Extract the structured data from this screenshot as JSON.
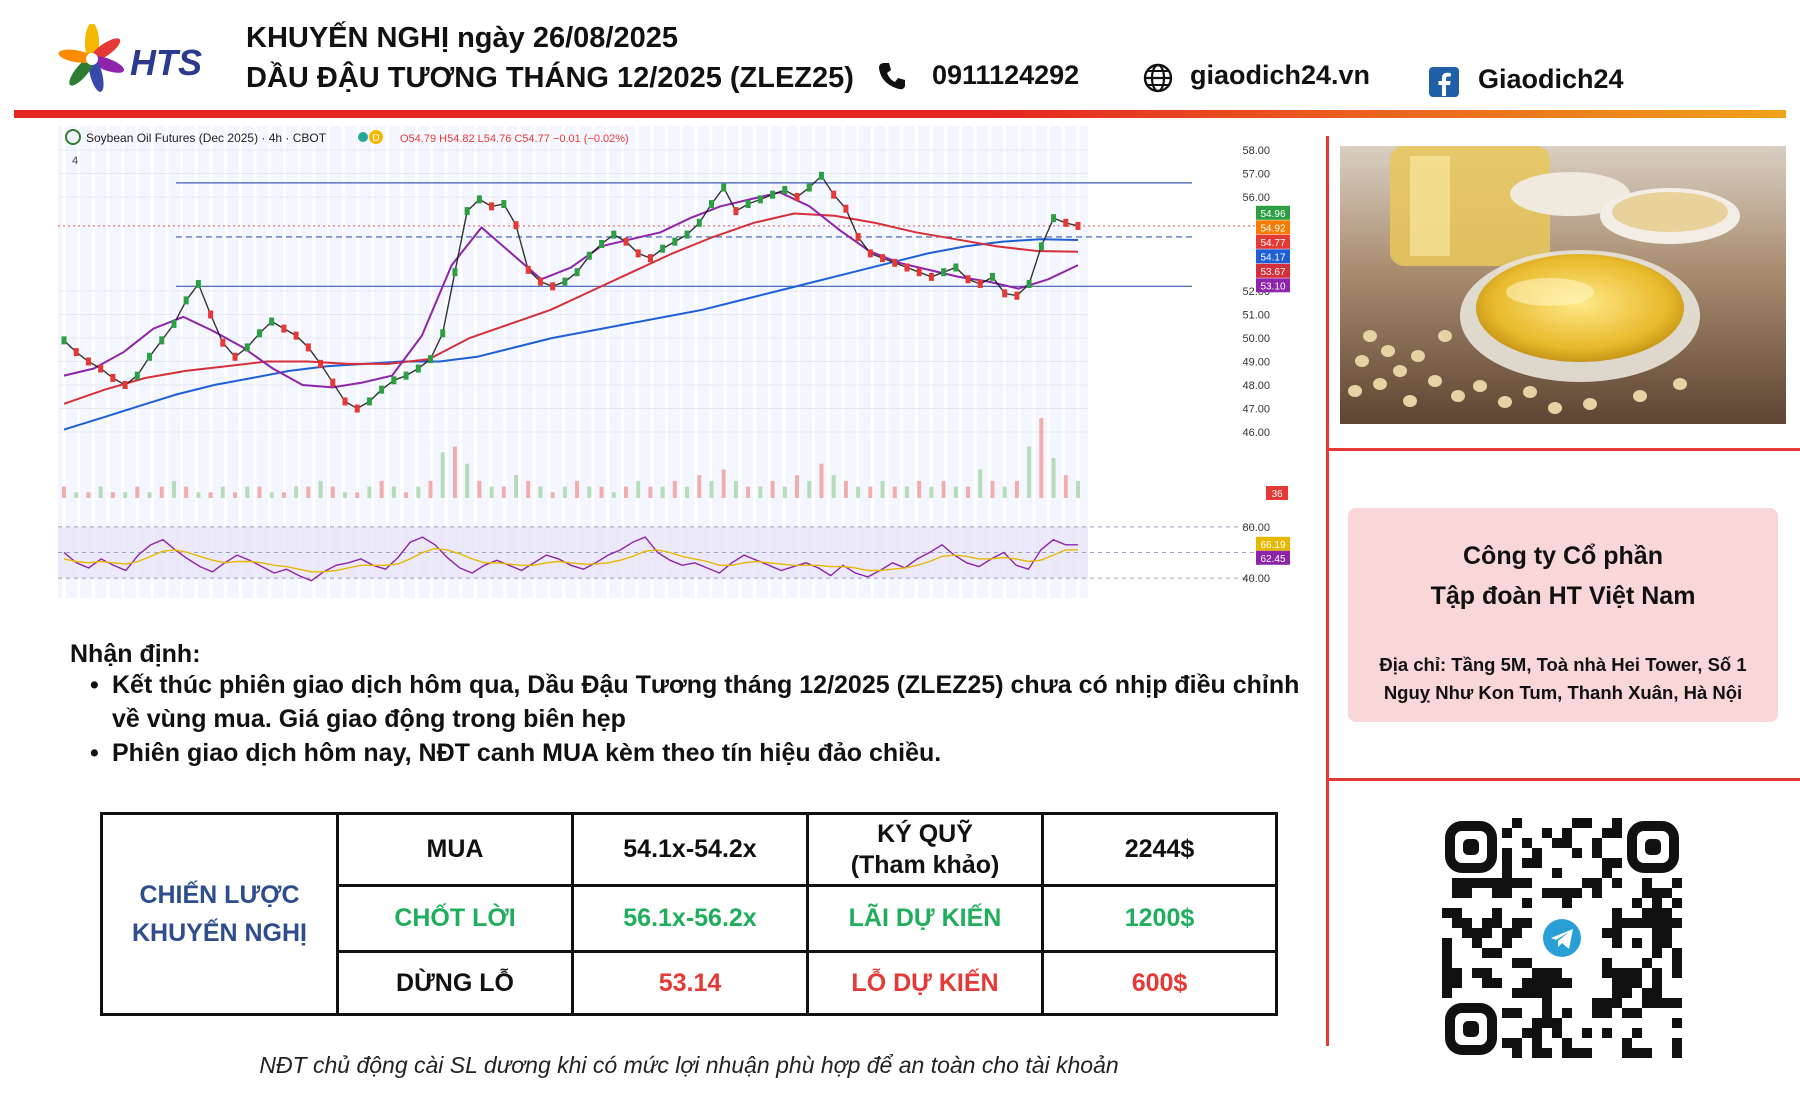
{
  "header": {
    "brand": "HTS",
    "title_line1": "KHUYẾN NGHỊ ngày 26/08/2025",
    "title_line2": "DẦU ĐẬU TƯƠNG THÁNG 12/2025 (ZLEZ25)",
    "phone": "0911124292",
    "website": "giaodich24.vn",
    "facebook": "Giaodich24",
    "icons": [
      "phone-icon",
      "globe-icon",
      "facebook-icon"
    ],
    "rule_colors": [
      "#e52521",
      "#f0a21b"
    ]
  },
  "chart_data": {
    "type": "line",
    "title": "Soybean Oil Futures (Dec 2025) · 4h · CBOT",
    "ohlc_text": "O54.79 H54.82 L54.76 C54.77 −0.01 (−0.02%)",
    "interval_badge": "D",
    "pane_count_label": "4",
    "ylim": [
      46.0,
      58.0
    ],
    "y_ticks": [
      58.0,
      57.0,
      56.0,
      52.0,
      51.0,
      50.0,
      49.0,
      48.0,
      47.0,
      46.0
    ],
    "y_tick_labels": [
      "58.00",
      "57.00",
      "56.00",
      "52.00",
      "51.00",
      "50.00",
      "49.00",
      "48.00",
      "47.00",
      "46.00"
    ],
    "price_series": {
      "name": "price",
      "color": "#2e7d32",
      "values": [
        49.9,
        49.4,
        49.0,
        48.7,
        48.3,
        48.0,
        48.4,
        49.2,
        49.9,
        50.6,
        51.6,
        52.3,
        51.0,
        49.8,
        49.2,
        49.6,
        50.2,
        50.7,
        50.4,
        50.1,
        49.6,
        48.9,
        48.1,
        47.3,
        47.0,
        47.3,
        47.8,
        48.2,
        48.4,
        48.7,
        49.1,
        50.2,
        52.8,
        55.4,
        55.9,
        55.6,
        55.7,
        54.8,
        52.9,
        52.4,
        52.2,
        52.4,
        52.8,
        53.5,
        54.0,
        54.4,
        54.1,
        53.6,
        53.4,
        53.8,
        54.1,
        54.4,
        54.9,
        55.7,
        56.4,
        55.4,
        55.7,
        55.9,
        56.1,
        56.3,
        56.0,
        56.4,
        56.9,
        56.1,
        55.5,
        54.3,
        53.6,
        53.4,
        53.2,
        53.0,
        52.8,
        52.6,
        52.8,
        53.0,
        52.5,
        52.3,
        52.6,
        51.9,
        51.8,
        52.3,
        53.9,
        55.1,
        54.9,
        54.77
      ]
    },
    "ma_series": [
      {
        "name": "MA slow",
        "color": "#1f5fd6",
        "values": [
          46.1,
          46.6,
          47.1,
          47.6,
          48.0,
          48.3,
          48.6,
          48.8,
          48.9,
          49.0,
          49.0,
          49.2,
          49.6,
          50.0,
          50.3,
          50.6,
          50.9,
          51.2,
          51.6,
          52.0,
          52.4,
          52.8,
          53.2,
          53.6,
          53.9,
          54.1,
          54.2,
          54.17
        ]
      },
      {
        "name": "MA mid",
        "color": "#d62f3a",
        "values": [
          47.2,
          47.8,
          48.3,
          48.6,
          48.8,
          49.0,
          49.0,
          48.9,
          48.9,
          49.1,
          50.0,
          50.6,
          51.2,
          52.0,
          52.8,
          53.6,
          54.3,
          54.9,
          55.3,
          55.2,
          54.9,
          54.5,
          54.2,
          53.9,
          53.7,
          53.67
        ]
      },
      {
        "name": "MA fast",
        "color": "#8e24aa",
        "values": [
          48.4,
          48.7,
          49.4,
          50.4,
          50.9,
          50.3,
          49.6,
          48.7,
          48.0,
          47.9,
          48.1,
          48.4,
          50.1,
          53.1,
          54.7,
          53.6,
          52.5,
          53.0,
          53.9,
          54.2,
          54.5,
          55.1,
          55.6,
          55.9,
          56.2,
          55.6,
          54.6,
          53.7,
          53.2,
          52.9,
          52.6,
          52.4,
          52.1,
          52.5,
          53.1
        ]
      }
    ],
    "h_levels": [
      {
        "value": 56.6,
        "style": "solid",
        "color": "#3b5bb5"
      },
      {
        "value": 54.3,
        "style": "dashed",
        "color": "#3b5bb5"
      },
      {
        "value": 52.2,
        "style": "solid",
        "color": "#3b5bb5"
      },
      {
        "value": 54.77,
        "style": "dotted",
        "color": "#e57373"
      }
    ],
    "price_labels": [
      {
        "text": "54.96",
        "color": "#2e9e44"
      },
      {
        "text": "54.92",
        "color": "#f57c00"
      },
      {
        "text": "54.77",
        "color": "#e53935"
      },
      {
        "text": "54.17",
        "color": "#1f5fd6"
      },
      {
        "text": "53.67",
        "color": "#d62f3a"
      },
      {
        "text": "53.10",
        "color": "#8e24aa"
      }
    ],
    "volume_label": "36",
    "volume": [
      2,
      1,
      1,
      2,
      1,
      1,
      2,
      1,
      2,
      3,
      2,
      1,
      1,
      2,
      1,
      2,
      2,
      1,
      1,
      2,
      2,
      3,
      2,
      1,
      1,
      2,
      3,
      2,
      1,
      2,
      3,
      8,
      9,
      6,
      3,
      2,
      2,
      4,
      3,
      2,
      1,
      2,
      3,
      2,
      2,
      1,
      2,
      3,
      2,
      2,
      3,
      2,
      4,
      3,
      5,
      3,
      2,
      2,
      3,
      2,
      4,
      3,
      6,
      4,
      3,
      2,
      2,
      3,
      2,
      2,
      3,
      2,
      3,
      2,
      2,
      5,
      3,
      2,
      3,
      9,
      14,
      7,
      4,
      3
    ],
    "oscillator": {
      "ylim": [
        30,
        90
      ],
      "levels": [
        80,
        60,
        40
      ],
      "tick_labels": [
        "80.00",
        "40.00"
      ],
      "values_labels": [
        {
          "text": "66.19",
          "color": "#e6b800"
        },
        {
          "text": "62.45",
          "color": "#8e24aa"
        }
      ],
      "series": [
        {
          "name": "RSI",
          "color": "#8e24aa",
          "values": [
            60,
            52,
            48,
            55,
            50,
            46,
            58,
            66,
            70,
            62,
            55,
            49,
            45,
            52,
            58,
            54,
            49,
            44,
            47,
            42,
            38,
            45,
            50,
            52,
            55,
            50,
            47,
            56,
            68,
            72,
            66,
            56,
            48,
            44,
            50,
            54,
            50,
            46,
            52,
            58,
            55,
            50,
            47,
            52,
            58,
            62,
            68,
            72,
            60,
            54,
            50,
            52,
            48,
            44,
            52,
            58,
            54,
            50,
            46,
            49,
            52,
            48,
            42,
            50,
            44,
            41,
            46,
            52,
            48,
            55,
            60,
            66,
            58,
            52,
            49,
            55,
            60,
            50,
            47,
            62,
            70,
            66,
            66
          ]
        },
        {
          "name": "RSI MA",
          "color": "#e6b800",
          "values": [
            55,
            53,
            52,
            53,
            52,
            51,
            53,
            57,
            61,
            62,
            60,
            57,
            54,
            52,
            53,
            53,
            52,
            50,
            49,
            47,
            45,
            45,
            46,
            48,
            50,
            50,
            50,
            51,
            55,
            60,
            63,
            62,
            59,
            55,
            52,
            52,
            51,
            50,
            50,
            52,
            53,
            52,
            51,
            51,
            52,
            54,
            57,
            61,
            62,
            60,
            57,
            55,
            53,
            50,
            50,
            52,
            53,
            52,
            51,
            50,
            50,
            50,
            49,
            49,
            48,
            46,
            46,
            47,
            48,
            50,
            53,
            57,
            58,
            57,
            55,
            55,
            56,
            55,
            53,
            54,
            58,
            62,
            62
          ]
        }
      ]
    }
  },
  "photo": {
    "alt": "soybean oil and soybeans",
    "icon": "soybean-oil-photo"
  },
  "company": {
    "name_line1": "Công ty Cổ phần",
    "name_line2": "Tập đoàn HT Việt Nam",
    "addr_line1": "Địa chỉ: Tầng 5M, Toà nhà Hei Tower, Số 1",
    "addr_line2": "Nguỵ Như Kon Tum, Thanh Xuân, Hà Nội"
  },
  "qr": {
    "icon": "telegram-icon"
  },
  "analysis": {
    "title": "Nhận định:",
    "bullets": [
      "Kết thúc phiên giao dịch hôm qua, Dầu Đậu Tương tháng 12/2025 (ZLEZ25) chưa có nhịp điều chỉnh về vùng mua. Giá giao động trong biên hẹp",
      "Phiên giao dịch hôm nay, NĐT canh MUA kèm theo tín hiệu đảo chiều."
    ],
    "bullet_marker": "•"
  },
  "strategy": {
    "label_line1": "CHIẾN LƯỢC",
    "label_line2": "KHUYẾN NGHỊ",
    "rows": [
      {
        "action": "MUA",
        "range": "54.1x-54.2x",
        "metric": "KÝ QUỸ",
        "metric_sub": "(Tham khảo)",
        "value": "2244$"
      },
      {
        "action": "CHỐT LỜI",
        "range": "56.1x-56.2x",
        "metric": "LÃI DỰ KIẾN",
        "value": "1200$"
      },
      {
        "action": "DỪNG LỖ",
        "range": "53.14",
        "metric": "LỖ DỰ KIẾN",
        "value": "600$"
      }
    ],
    "colors": {
      "label": "#2d4d8f",
      "profit": "#1fae5b",
      "loss": "#e53935"
    }
  },
  "footnote": "NĐT chủ động cài SL dương khi có mức lợi nhuận phù hợp để an toàn cho tài khoản"
}
